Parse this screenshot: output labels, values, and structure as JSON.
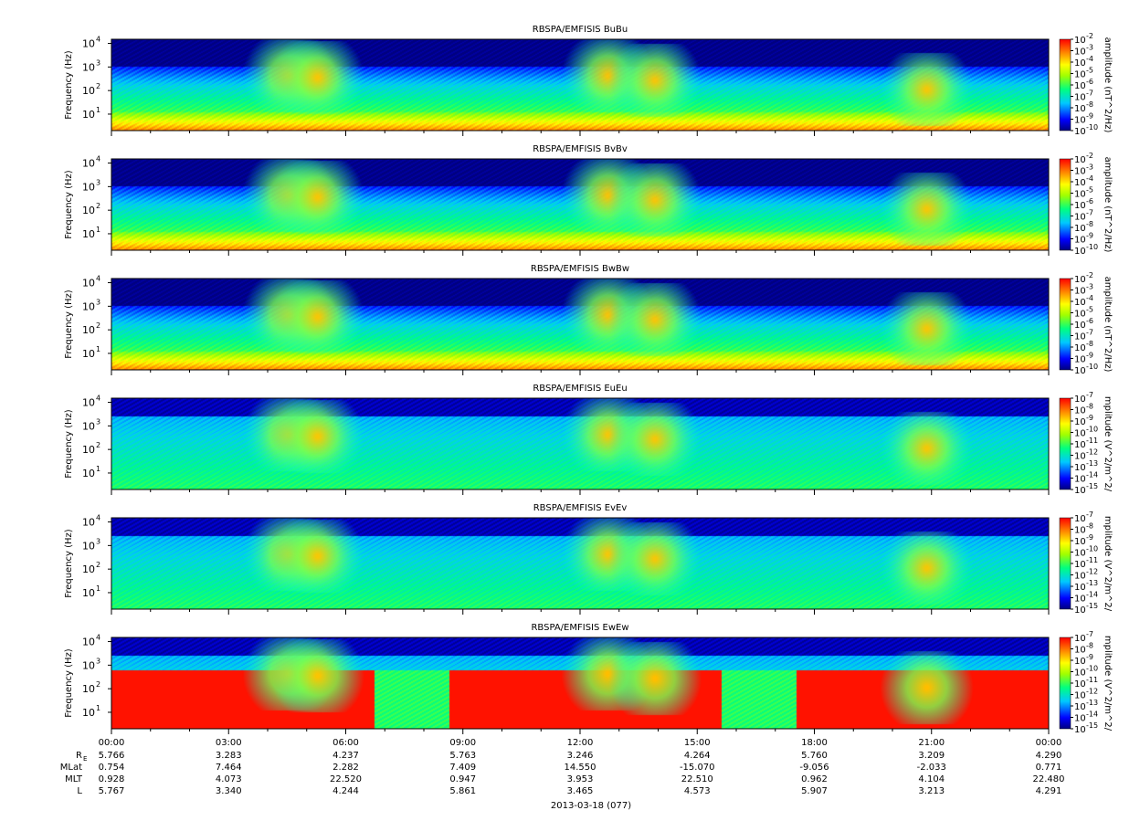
{
  "chart_data": [
    {
      "type": "heatmap",
      "title": "RBSPA/EMFISIS  BuBu",
      "ylabel": "Frequency (Hz)",
      "yscale": "log",
      "ylim": [
        2,
        15000
      ],
      "yticks": [
        "10",
        "3",
        "2",
        "1"
      ],
      "colorbar_label": "amplitude (nT^2/Hz)",
      "colorbar_ticks": [
        "-2",
        "-3",
        "-4",
        "-5",
        "-6",
        "-7",
        "-8",
        "-9",
        "-10"
      ],
      "kind": "B",
      "floor": 0.78,
      "ew": false
    },
    {
      "type": "heatmap",
      "title": "RBSPA/EMFISIS  BvBv",
      "ylabel": "Frequency (Hz)",
      "yscale": "log",
      "ylim": [
        2,
        15000
      ],
      "yticks": [
        "10",
        "3",
        "2",
        "1"
      ],
      "colorbar_label": "amplitude (nT^2/Hz)",
      "colorbar_ticks": [
        "-2",
        "-3",
        "-4",
        "-5",
        "-6",
        "-7",
        "-8",
        "-9",
        "-10"
      ],
      "kind": "B",
      "floor": 0.78,
      "ew": false
    },
    {
      "type": "heatmap",
      "title": "RBSPA/EMFISIS  BwBw",
      "ylabel": "Frequency (Hz)",
      "yscale": "log",
      "ylim": [
        2,
        15000
      ],
      "yticks": [
        "10",
        "3",
        "2",
        "1"
      ],
      "colorbar_label": "amplitude (nT^2/Hz)",
      "colorbar_ticks": [
        "-2",
        "-3",
        "-4",
        "-5",
        "-6",
        "-7",
        "-8",
        "-9",
        "-10"
      ],
      "kind": "B",
      "floor": 0.78,
      "ew": false
    },
    {
      "type": "heatmap",
      "title": "RBSPA/EMFISIS  EuEu",
      "ylabel": "Frequency (Hz)",
      "yscale": "log",
      "ylim": [
        2,
        15000
      ],
      "yticks": [
        "10",
        "3",
        "2",
        "1"
      ],
      "colorbar_label": "mplitude (V^2/m^2/",
      "colorbar_ticks": [
        "-7",
        "-8",
        "-9",
        "-10",
        "-11",
        "-12",
        "-13",
        "-14",
        "-15"
      ],
      "kind": "E",
      "floor": 0.92,
      "ew": false
    },
    {
      "type": "heatmap",
      "title": "RBSPA/EMFISIS  EvEv",
      "ylabel": "Frequency (Hz)",
      "yscale": "log",
      "ylim": [
        2,
        15000
      ],
      "yticks": [
        "10",
        "3",
        "2",
        "1"
      ],
      "colorbar_label": "mplitude (V^2/m^2/",
      "colorbar_ticks": [
        "-7",
        "-8",
        "-9",
        "-10",
        "-11",
        "-12",
        "-13",
        "-14",
        "-15"
      ],
      "kind": "E",
      "floor": 0.92,
      "ew": false
    },
    {
      "type": "heatmap",
      "title": "RBSPA/EMFISIS  EwEw",
      "ylabel": "Frequency (Hz)",
      "yscale": "log",
      "ylim": [
        2,
        15000
      ],
      "yticks": [
        "10",
        "3",
        "2",
        "1"
      ],
      "colorbar_label": "mplitude (V^2/m^2/",
      "colorbar_ticks": [
        "-7",
        "-8",
        "-9",
        "-10",
        "-11",
        "-12",
        "-13",
        "-14",
        "-15"
      ],
      "kind": "E",
      "floor": 0.92,
      "ew": true
    }
  ],
  "xaxis": {
    "ticks": [
      "00:00",
      "03:00",
      "06:00",
      "09:00",
      "12:00",
      "15:00",
      "18:00",
      "21:00",
      "00:00"
    ],
    "date_label": "2013-03-18 (077)"
  },
  "ephemeris": [
    {
      "label": "R",
      "sub": "E",
      "values": [
        "5.766",
        "3.283",
        "4.237",
        "5.763",
        "3.246",
        "4.264",
        "5.760",
        "3.209",
        "4.290"
      ]
    },
    {
      "label": "MLat",
      "values": [
        "0.754",
        "7.464",
        "2.282",
        "7.409",
        "14.550",
        "-15.070",
        "-9.056",
        "-2.033",
        "0.771"
      ]
    },
    {
      "label": "MLT",
      "values": [
        "0.928",
        "4.073",
        "22.520",
        "0.947",
        "3.953",
        "22.510",
        "0.962",
        "4.104",
        "22.480"
      ]
    },
    {
      "label": "L",
      "values": [
        "5.767",
        "3.340",
        "4.244",
        "5.861",
        "3.465",
        "4.573",
        "5.907",
        "3.213",
        "4.291"
      ]
    }
  ]
}
